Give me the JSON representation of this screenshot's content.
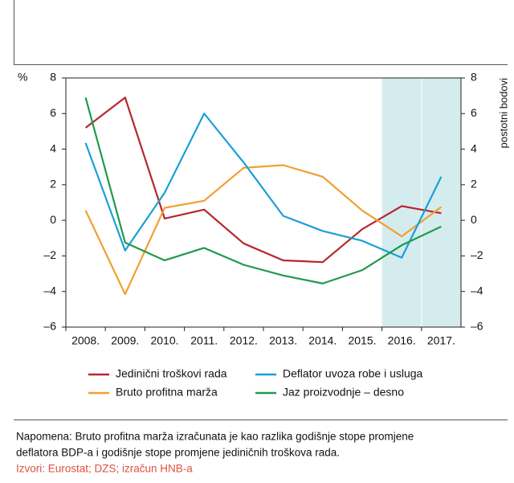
{
  "chart_data": {
    "type": "line",
    "ylabel": "%",
    "y2label": "postotni bodovi",
    "categories": [
      "2008.",
      "2009.",
      "2010.",
      "2011.",
      "2012.",
      "2013.",
      "2014.",
      "2015.",
      "2016.",
      "2017."
    ],
    "ylim": [
      -6,
      8
    ],
    "yticks": [
      {
        "value": -6,
        "label": "–6"
      },
      {
        "value": -4,
        "label": "–4"
      },
      {
        "value": -2,
        "label": "–2"
      },
      0,
      2,
      4,
      6,
      8
    ],
    "y2lim": [
      -6,
      8
    ],
    "y2ticks": [
      {
        "value": -6,
        "label": "–6"
      },
      {
        "value": -4,
        "label": "–4"
      },
      {
        "value": -2,
        "label": "–2"
      },
      0,
      2,
      4,
      6,
      8
    ],
    "highlight_start_index": 8,
    "highlight_color": "#d5ecee",
    "series": [
      {
        "name": "Jedinični troškovi rada",
        "color": "#b5272d",
        "values": [
          5.2,
          6.9,
          0.1,
          0.6,
          -1.3,
          -2.25,
          -2.35,
          -0.5,
          0.8,
          0.4
        ]
      },
      {
        "name": "Bruto profitna marža",
        "color": "#f0a030",
        "values": [
          0.55,
          -4.15,
          0.7,
          1.1,
          2.95,
          3.1,
          2.45,
          0.55,
          -0.9,
          0.75
        ]
      },
      {
        "name": "Deflator uvoza robe i usluga",
        "color": "#1aa0d8",
        "values": [
          4.35,
          -1.7,
          1.55,
          6.0,
          3.25,
          0.25,
          -0.6,
          -1.15,
          -2.1,
          2.45
        ]
      },
      {
        "name": "Jaz proizvodnje – desno",
        "color": "#1f9a4a",
        "axis": "y2",
        "values": [
          6.9,
          -1.25,
          -2.25,
          -1.55,
          -2.5,
          -3.1,
          -3.55,
          -2.8,
          -1.4,
          -0.35
        ]
      }
    ],
    "note": [
      "Napomena: Bruto profitna marža izračunata je kao razlika godišnje stope promjene",
      "deflatora BDP-a i godišnje stope promjene jediničnih troškova rada."
    ],
    "source": "Izvori: Eurostat; DZS; izračun HNB-a"
  }
}
